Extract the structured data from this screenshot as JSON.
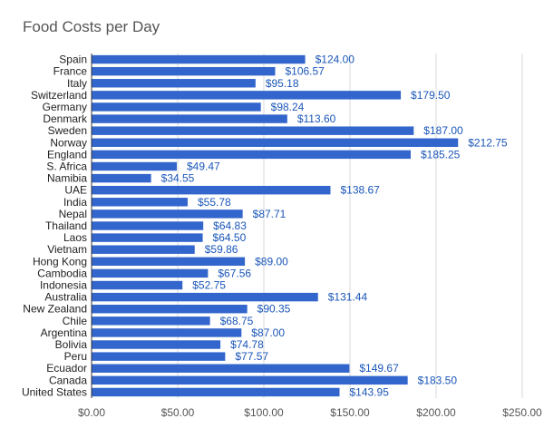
{
  "chart_data": {
    "type": "bar",
    "orientation": "horizontal",
    "title": "Food Costs per Day",
    "xlabel": "",
    "ylabel": "",
    "xlim": [
      0,
      250
    ],
    "x_ticks": [
      0,
      50,
      100,
      150,
      200,
      250
    ],
    "x_tick_labels": [
      "$0.00",
      "$50.00",
      "$100.00",
      "$150.00",
      "$200.00",
      "$250.00"
    ],
    "grid": true,
    "legend": "none",
    "bar_color": "#3366cc",
    "label_color": "#1a56b8",
    "categories": [
      "Spain",
      "France",
      "Italy",
      "Switzerland",
      "Germany",
      "Denmark",
      "Sweden",
      "Norway",
      "England",
      "S. Africa",
      "Namibia",
      "UAE",
      "India",
      "Nepal",
      "Thailand",
      "Laos",
      "Vietnam",
      "Hong Kong",
      "Cambodia",
      "Indonesia",
      "Australia",
      "New Zealand",
      "Chile",
      "Argentina",
      "Bolivia",
      "Peru",
      "Ecuador",
      "Canada",
      "United States"
    ],
    "values": [
      124.0,
      106.57,
      95.18,
      179.5,
      98.24,
      113.6,
      187.0,
      212.75,
      185.25,
      49.47,
      34.55,
      138.67,
      55.78,
      87.71,
      64.83,
      64.5,
      59.86,
      89.0,
      67.56,
      52.75,
      131.44,
      90.35,
      68.75,
      87.0,
      74.78,
      77.57,
      149.67,
      183.5,
      143.95
    ],
    "value_labels": [
      "$124.00",
      "$106.57",
      "$95.18",
      "$179.50",
      "$98.24",
      "$113.60",
      "$187.00",
      "$212.75",
      "$185.25",
      "$49.47",
      "$34.55",
      "$138.67",
      "$55.78",
      "$87.71",
      "$64.83",
      "$64.50",
      "$59.86",
      "$89.00",
      "$67.56",
      "$52.75",
      "$131.44",
      "$90.35",
      "$68.75",
      "$87.00",
      "$74.78",
      "$77.57",
      "$149.67",
      "$183.50",
      "$143.95"
    ]
  }
}
